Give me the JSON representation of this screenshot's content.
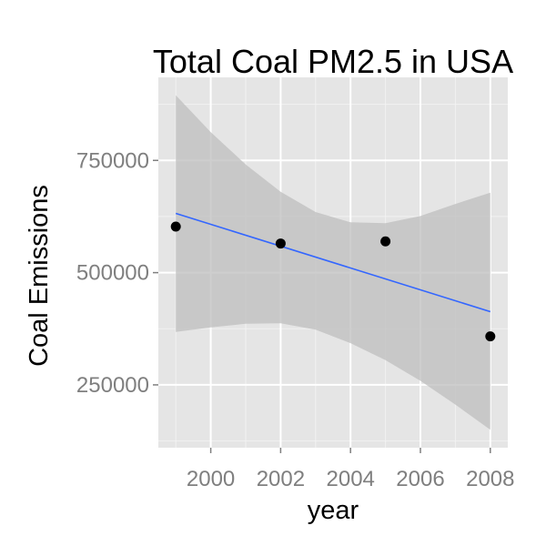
{
  "chart_data": {
    "type": "scatter",
    "title": "Total Coal PM2.5 in USA",
    "xlabel": "year",
    "ylabel": "Coal Emissions",
    "xlim": [
      1998.5,
      2008.5
    ],
    "ylim": [
      110000,
      935000
    ],
    "x_ticks": [
      2000,
      2002,
      2004,
      2006,
      2008
    ],
    "x_tick_labels": [
      "2000",
      "2002",
      "2004",
      "2006",
      "2008"
    ],
    "y_ticks": [
      250000,
      500000,
      750000
    ],
    "y_tick_labels": [
      "250000",
      "500000",
      "750000"
    ],
    "grid": true,
    "points": [
      {
        "x": 1999,
        "y": 602624
      },
      {
        "x": 2002,
        "y": 564940
      },
      {
        "x": 2005,
        "y": 569655
      },
      {
        "x": 2008,
        "y": 358084
      }
    ],
    "trend_line": {
      "x": [
        1999,
        2008
      ],
      "y": [
        632000,
        413000
      ]
    },
    "confidence_band": {
      "x": [
        1999,
        2000,
        2001,
        2002,
        2003,
        2004,
        2005,
        2006,
        2007,
        2008
      ],
      "upper": [
        895000,
        813000,
        741000,
        680000,
        635000,
        612000,
        610000,
        626000,
        653000,
        678000
      ],
      "lower": [
        368000,
        378000,
        386000,
        387000,
        373000,
        343000,
        305000,
        259000,
        206000,
        150000
      ]
    },
    "colors": {
      "panel": "#e5e5e5",
      "grid_major": "#ffffff",
      "grid_minor": "#f2f2f2",
      "band": "#bdbdbd",
      "line": "#3366ff",
      "point": "#000000",
      "tick": "#7f7f7f"
    }
  }
}
